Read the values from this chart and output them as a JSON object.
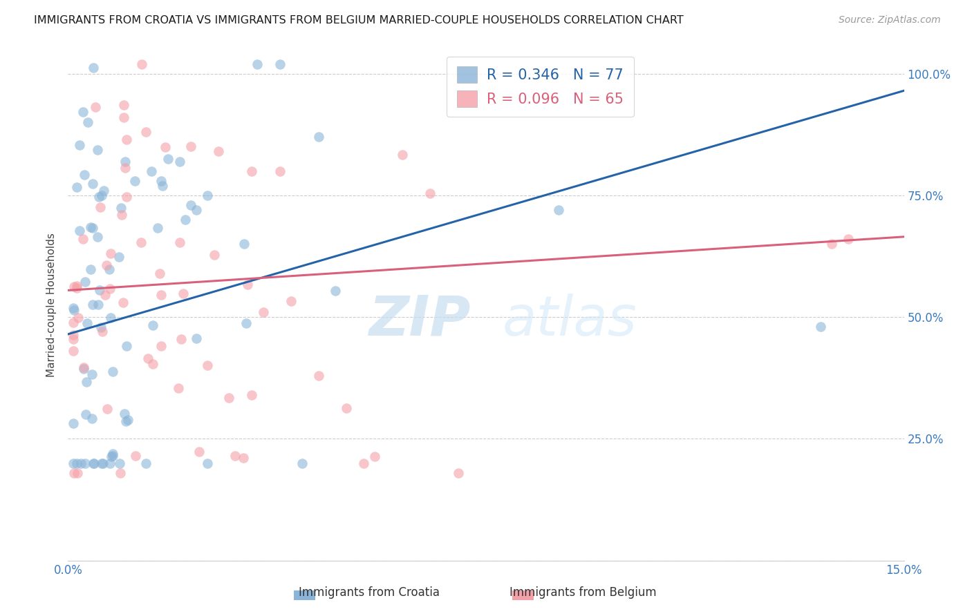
{
  "title": "IMMIGRANTS FROM CROATIA VS IMMIGRANTS FROM BELGIUM MARRIED-COUPLE HOUSEHOLDS CORRELATION CHART",
  "source": "Source: ZipAtlas.com",
  "ylabel_label": "Married-couple Households",
  "xmin": 0.0,
  "xmax": 0.15,
  "ymin": 0.0,
  "ymax": 1.05,
  "ytick_positions": [
    0.0,
    0.25,
    0.5,
    0.75,
    1.0
  ],
  "ytick_labels": [
    "",
    "25.0%",
    "50.0%",
    "75.0%",
    "100.0%"
  ],
  "xtick_positions": [
    0.0,
    0.05,
    0.1,
    0.15
  ],
  "xtick_labels": [
    "0.0%",
    "",
    "",
    "15.0%"
  ],
  "croatia_color": "#8ab4d8",
  "belgium_color": "#f4a0a8",
  "croatia_line_color": "#2563a8",
  "belgium_line_color": "#d9607a",
  "croatia_R": 0.346,
  "croatia_N": 77,
  "belgium_R": 0.096,
  "belgium_N": 65,
  "legend_label_croatia": "Immigrants from Croatia",
  "legend_label_belgium": "Immigrants from Belgium",
  "watermark_zip": "ZIP",
  "watermark_atlas": "atlas",
  "croatia_line_x0": 0.0,
  "croatia_line_y0": 0.465,
  "croatia_line_x1": 0.15,
  "croatia_line_y1": 0.965,
  "belgium_line_x0": 0.0,
  "belgium_line_y0": 0.555,
  "belgium_line_x1": 0.15,
  "belgium_line_y1": 0.665
}
